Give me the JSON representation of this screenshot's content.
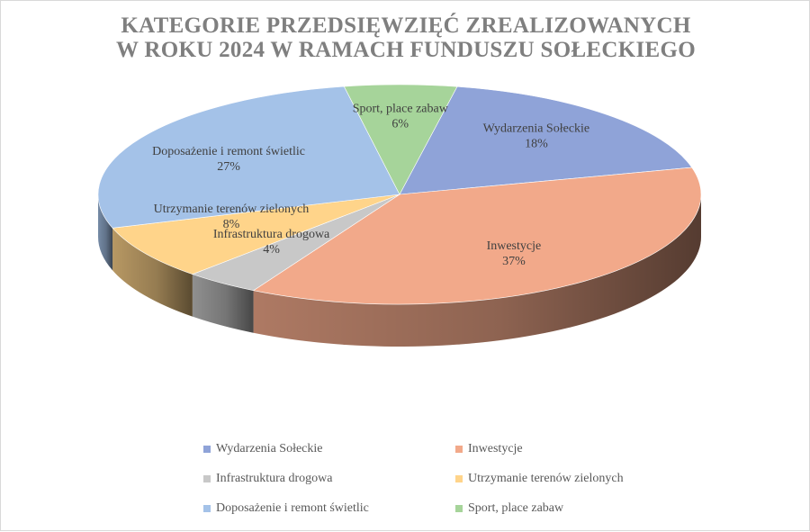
{
  "chart_data": {
    "type": "pie",
    "title": [
      "KATEGORIE PRZEDSIĘWZIĘĆ ZREALIZOWANYCH",
      "W ROKU 2024 W RAMACH FUNDUSZU SOŁECKIEGO"
    ],
    "slices": [
      {
        "label": "Wydarzenia Sołeckie",
        "percent_label": "18%",
        "value": 18,
        "color": "#8fa3d8"
      },
      {
        "label": "Inwestycje",
        "percent_label": "37%",
        "value": 37,
        "color": "#f2a98a"
      },
      {
        "label": "Infrastruktura drogowa",
        "percent_label": "4%",
        "value": 4,
        "color": "#c8c8c8"
      },
      {
        "label": "Utrzymanie terenów zielonych",
        "percent_label": "8%",
        "value": 8,
        "color": "#ffd48a"
      },
      {
        "label": "Doposażenie i remont świetlic",
        "percent_label": "27%",
        "value": 27,
        "color": "#a4c2e8"
      },
      {
        "label": "Sport, place zabaw",
        "percent_label": "6%",
        "value": 6,
        "color": "#a6d49a"
      }
    ],
    "legend_position": "bottom",
    "style": "3d-pie"
  }
}
